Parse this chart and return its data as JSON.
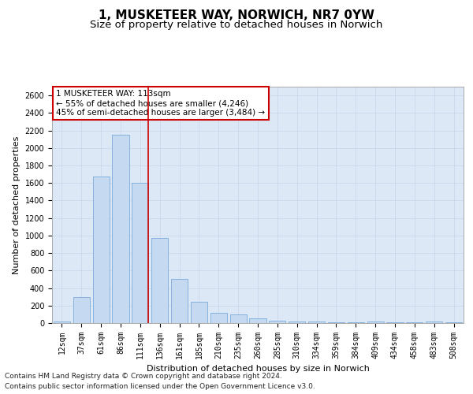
{
  "title": "1, MUSKETEER WAY, NORWICH, NR7 0YW",
  "subtitle": "Size of property relative to detached houses in Norwich",
  "xlabel": "Distribution of detached houses by size in Norwich",
  "ylabel": "Number of detached properties",
  "footer_line1": "Contains HM Land Registry data © Crown copyright and database right 2024.",
  "footer_line2": "Contains public sector information licensed under the Open Government Licence v3.0.",
  "categories": [
    "12sqm",
    "37sqm",
    "61sqm",
    "86sqm",
    "111sqm",
    "136sqm",
    "161sqm",
    "185sqm",
    "210sqm",
    "235sqm",
    "260sqm",
    "285sqm",
    "310sqm",
    "334sqm",
    "359sqm",
    "384sqm",
    "409sqm",
    "434sqm",
    "458sqm",
    "483sqm",
    "508sqm"
  ],
  "values": [
    20,
    300,
    1670,
    2150,
    1600,
    970,
    500,
    245,
    120,
    100,
    50,
    30,
    15,
    20,
    10,
    5,
    20,
    5,
    5,
    20,
    5
  ],
  "bar_color": "#c5d9f0",
  "bar_edge_color": "#7aabdb",
  "highlight_index": 4,
  "highlight_color": "#cc0000",
  "annotation_text": "1 MUSKETEER WAY: 113sqm\n← 55% of detached houses are smaller (4,246)\n45% of semi-detached houses are larger (3,484) →",
  "annotation_box_color": "#cc0000",
  "ylim": [
    0,
    2700
  ],
  "yticks": [
    0,
    200,
    400,
    600,
    800,
    1000,
    1200,
    1400,
    1600,
    1800,
    2000,
    2200,
    2400,
    2600
  ],
  "grid_color": "#c8d8ec",
  "bg_color": "#dce8f5",
  "fig_bg_color": "#ffffff",
  "title_fontsize": 11,
  "subtitle_fontsize": 9.5,
  "axis_label_fontsize": 8,
  "tick_fontsize": 7,
  "footer_fontsize": 6.5,
  "annotation_fontsize": 7.5
}
